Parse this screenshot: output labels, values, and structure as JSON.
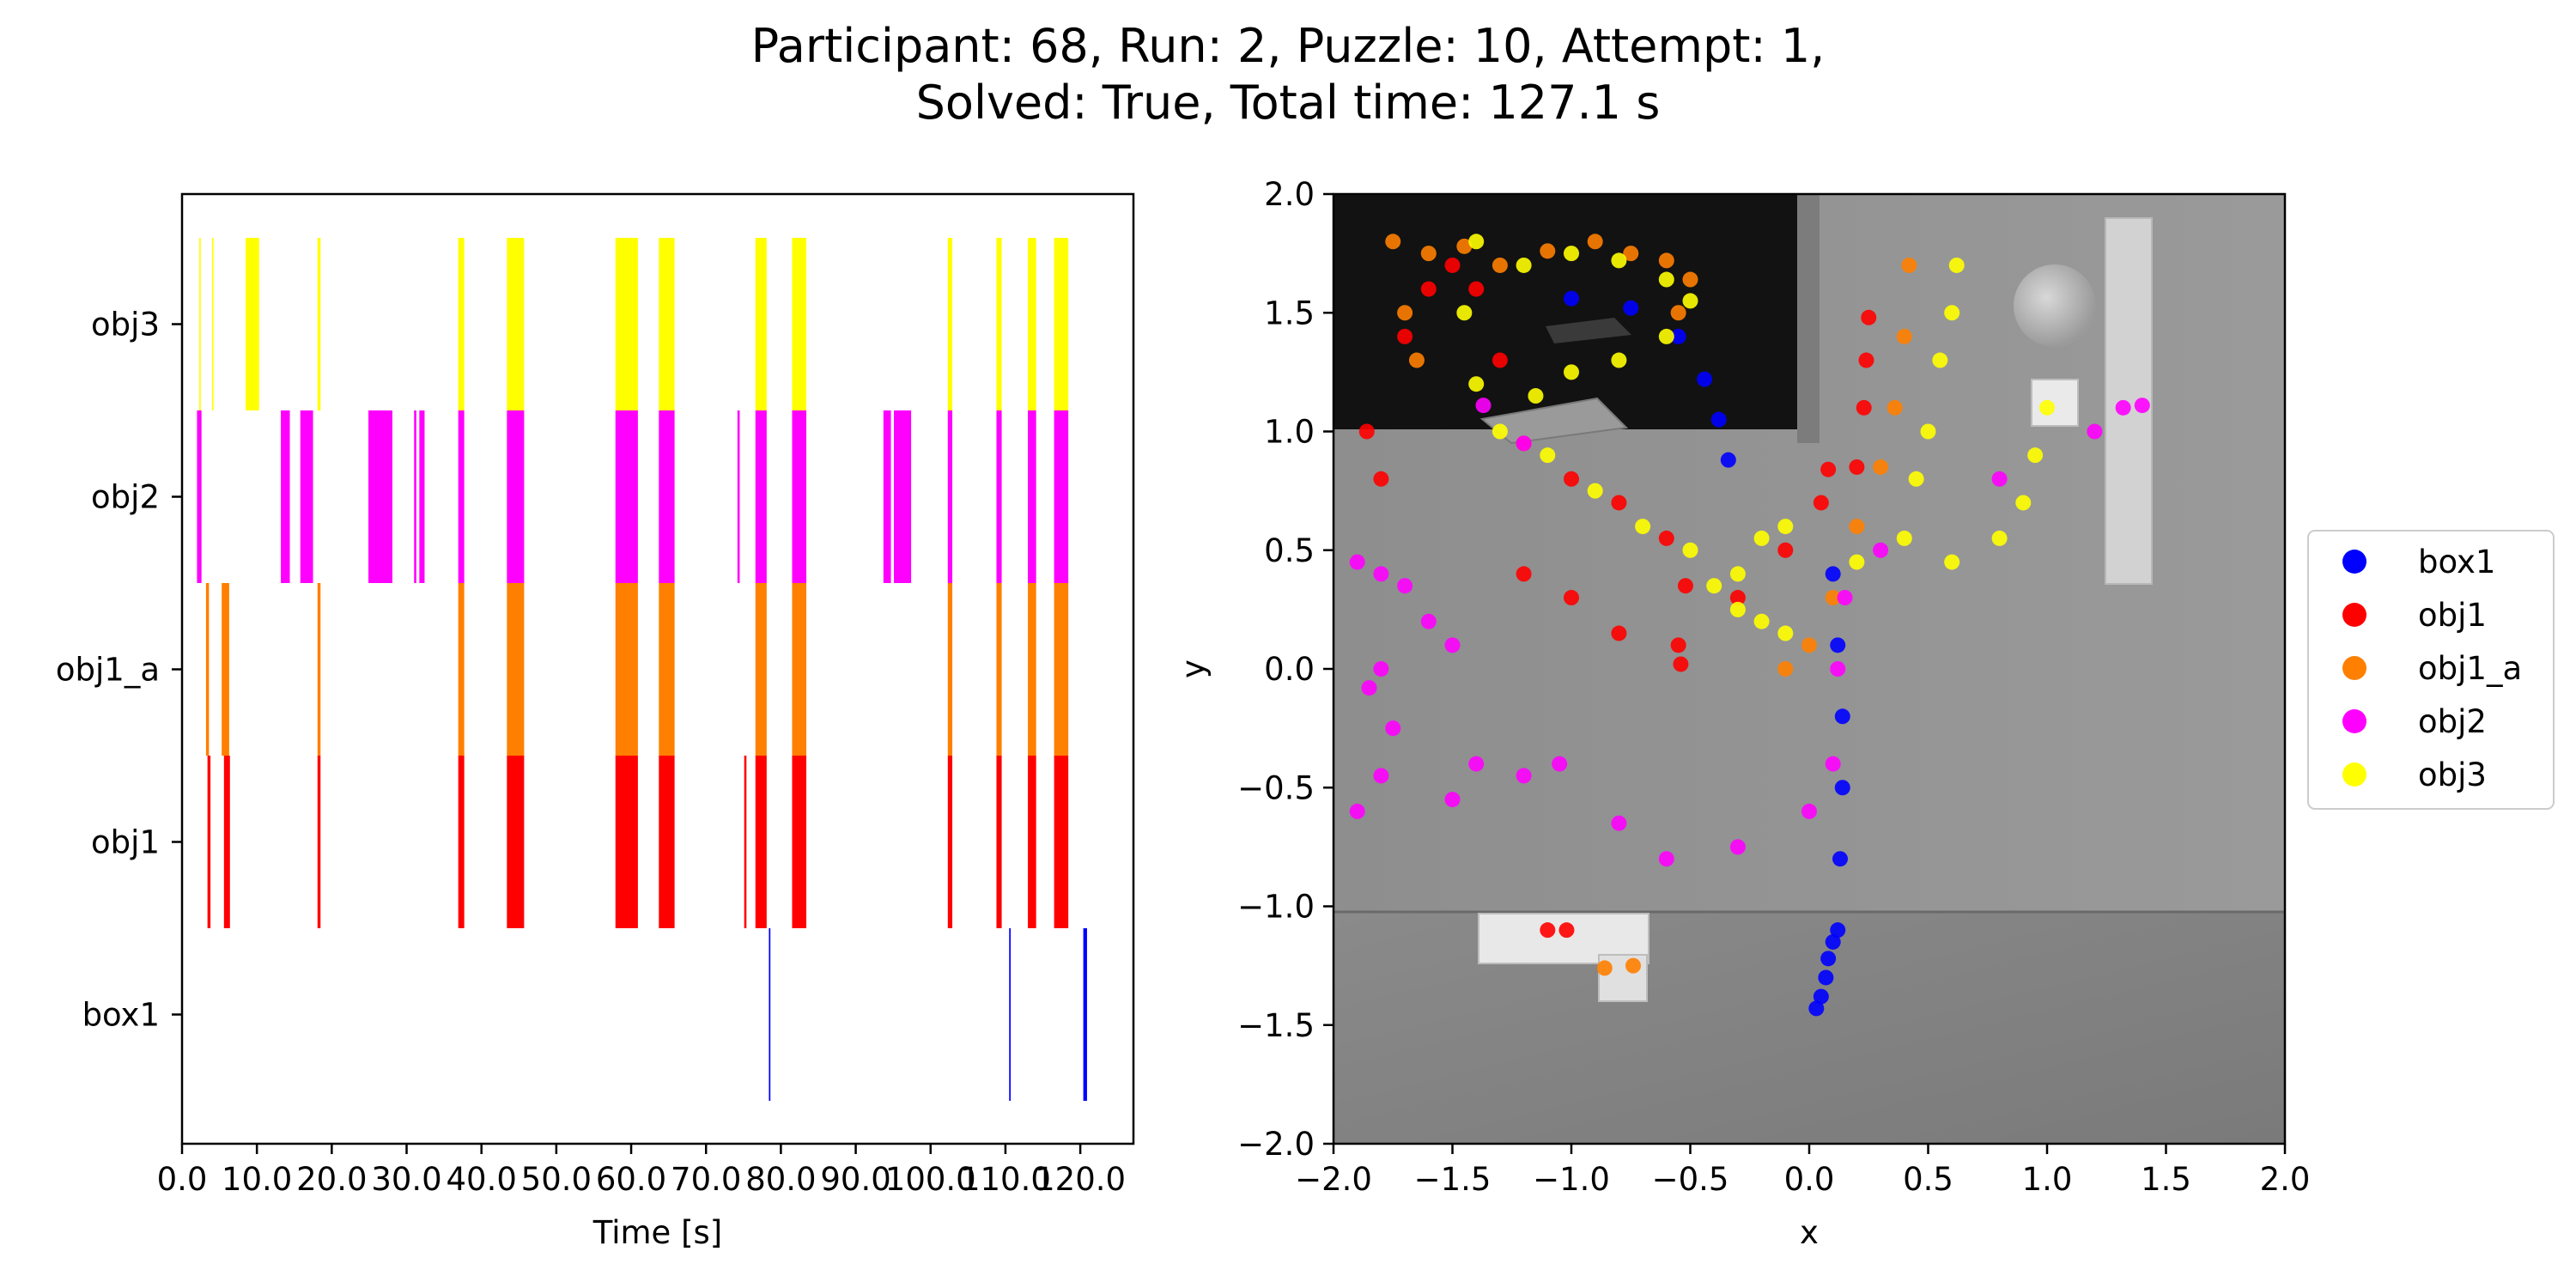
{
  "figure": {
    "title_line1": "Participant: 68, Run: 2, Puzzle: 10, Attempt: 1,",
    "title_line2": "Solved: True, Total time: 127.1 s"
  },
  "colors": {
    "box1": "#0000ff",
    "obj1": "#ff0000",
    "obj1_a": "#ff7f00",
    "obj2": "#ff00ff",
    "obj3": "#ffff00"
  },
  "chart_data": [
    {
      "type": "timeline",
      "xlabel": "Time [s]",
      "xlim": [
        0,
        127.1
      ],
      "xticks": [
        0,
        10,
        20,
        30,
        40,
        50,
        60,
        70,
        80,
        90,
        100,
        110,
        120
      ],
      "xtick_labels": [
        "0.0",
        "10.0",
        "20.0",
        "30.0",
        "40.0",
        "50.0",
        "60.0",
        "70.0",
        "80.0",
        "90.0",
        "100.0",
        "110.0",
        "120.0"
      ],
      "rows": [
        "box1",
        "obj1",
        "obj1_a",
        "obj2",
        "obj3"
      ],
      "intervals": {
        "obj3": [
          [
            2.3,
            2.5
          ],
          [
            4.0,
            4.2
          ],
          [
            8.5,
            10.3
          ],
          [
            18.1,
            18.5
          ],
          [
            36.9,
            37.7
          ],
          [
            43.4,
            45.7
          ],
          [
            57.9,
            60.9
          ],
          [
            63.7,
            65.8
          ],
          [
            76.6,
            78.1
          ],
          [
            81.5,
            83.4
          ],
          [
            102.3,
            102.9
          ],
          [
            108.8,
            109.5
          ],
          [
            113.0,
            114.1
          ],
          [
            116.5,
            118.4
          ]
        ],
        "obj2": [
          [
            2.0,
            2.6
          ],
          [
            13.2,
            14.4
          ],
          [
            15.8,
            17.5
          ],
          [
            24.9,
            28.1
          ],
          [
            31.0,
            31.3
          ],
          [
            31.7,
            32.4
          ],
          [
            36.9,
            37.7
          ],
          [
            43.4,
            45.7
          ],
          [
            57.9,
            60.9
          ],
          [
            63.7,
            65.8
          ],
          [
            74.2,
            74.5
          ],
          [
            76.6,
            78.1
          ],
          [
            81.5,
            83.4
          ],
          [
            93.7,
            94.7
          ],
          [
            95.1,
            97.4
          ],
          [
            102.3,
            102.9
          ],
          [
            108.8,
            109.5
          ],
          [
            113.0,
            114.1
          ],
          [
            116.5,
            118.4
          ]
        ],
        "obj1_a": [
          [
            3.2,
            3.6
          ],
          [
            5.3,
            6.3
          ],
          [
            18.1,
            18.5
          ],
          [
            36.9,
            37.7
          ],
          [
            43.4,
            45.7
          ],
          [
            57.9,
            60.9
          ],
          [
            63.7,
            65.8
          ],
          [
            76.6,
            78.1
          ],
          [
            81.5,
            83.4
          ],
          [
            102.3,
            102.9
          ],
          [
            108.8,
            109.5
          ],
          [
            113.0,
            114.1
          ],
          [
            116.5,
            118.4
          ]
        ],
        "obj1": [
          [
            3.4,
            3.8
          ],
          [
            5.6,
            6.4
          ],
          [
            18.1,
            18.5
          ],
          [
            36.9,
            37.7
          ],
          [
            43.4,
            45.7
          ],
          [
            57.9,
            60.9
          ],
          [
            63.7,
            65.8
          ],
          [
            75.1,
            75.4
          ],
          [
            76.6,
            78.1
          ],
          [
            81.5,
            83.4
          ],
          [
            102.3,
            102.9
          ],
          [
            108.8,
            109.5
          ],
          [
            113.0,
            114.1
          ],
          [
            116.5,
            118.4
          ]
        ],
        "box1": [
          [
            78.4,
            78.6
          ],
          [
            110.5,
            110.7
          ],
          [
            120.4,
            120.9
          ]
        ]
      }
    },
    {
      "type": "scatter",
      "xlabel": "x",
      "ylabel": "y",
      "xlim": [
        -2.0,
        2.0
      ],
      "ylim": [
        -2.0,
        2.0
      ],
      "xticks": [
        "−2.0",
        "−1.5",
        "−1.0",
        "−0.5",
        "0.0",
        "0.5",
        "1.0",
        "1.5",
        "2.0"
      ],
      "yticks": [
        "−2.0",
        "−1.5",
        "−1.0",
        "−0.5",
        "0.0",
        "0.5",
        "1.0",
        "1.5",
        "2.0"
      ],
      "legend": {
        "position": "right",
        "entries": [
          "box1",
          "obj1",
          "obj1_a",
          "obj2",
          "obj3"
        ]
      },
      "series": [
        {
          "name": "box1",
          "points": [
            [
              0.03,
              -1.43
            ],
            [
              0.05,
              -1.38
            ],
            [
              0.07,
              -1.3
            ],
            [
              0.08,
              -1.22
            ],
            [
              0.1,
              -1.15
            ],
            [
              0.12,
              -1.1
            ],
            [
              0.13,
              -0.8
            ],
            [
              0.14,
              -0.5
            ],
            [
              0.14,
              -0.2
            ],
            [
              0.12,
              0.1
            ],
            [
              0.1,
              0.4
            ],
            [
              -0.34,
              0.88
            ],
            [
              -0.38,
              1.05
            ],
            [
              -0.44,
              1.22
            ],
            [
              -0.55,
              1.4
            ],
            [
              -0.75,
              1.52
            ],
            [
              -1.0,
              1.56
            ]
          ]
        },
        {
          "name": "obj1",
          "points": [
            [
              -1.1,
              -1.1
            ],
            [
              -1.02,
              -1.1
            ],
            [
              -1.86,
              1.0
            ],
            [
              -1.8,
              0.8
            ],
            [
              -1.7,
              1.4
            ],
            [
              -1.6,
              1.6
            ],
            [
              -1.5,
              1.7
            ],
            [
              -1.4,
              1.6
            ],
            [
              -1.3,
              1.3
            ],
            [
              -1.2,
              0.95
            ],
            [
              -1.0,
              0.8
            ],
            [
              -0.8,
              0.7
            ],
            [
              -0.6,
              0.55
            ],
            [
              -0.52,
              0.35
            ],
            [
              -0.55,
              0.1
            ],
            [
              -0.54,
              0.02
            ],
            [
              -0.3,
              0.3
            ],
            [
              -0.1,
              0.5
            ],
            [
              0.05,
              0.7
            ],
            [
              0.08,
              0.84
            ],
            [
              0.2,
              0.85
            ],
            [
              0.23,
              1.1
            ],
            [
              0.24,
              1.3
            ],
            [
              0.25,
              1.48
            ],
            [
              -1.2,
              0.4
            ],
            [
              -1.0,
              0.3
            ],
            [
              -0.8,
              0.15
            ]
          ]
        },
        {
          "name": "obj1_a",
          "points": [
            [
              -0.86,
              -1.26
            ],
            [
              -0.74,
              -1.25
            ],
            [
              -1.75,
              1.8
            ],
            [
              -1.6,
              1.75
            ],
            [
              -1.45,
              1.78
            ],
            [
              -1.3,
              1.7
            ],
            [
              -1.1,
              1.76
            ],
            [
              -0.9,
              1.8
            ],
            [
              -0.75,
              1.75
            ],
            [
              -0.6,
              1.72
            ],
            [
              -0.5,
              1.64
            ],
            [
              -0.55,
              1.5
            ],
            [
              -1.7,
              1.5
            ],
            [
              -1.65,
              1.3
            ],
            [
              -0.1,
              0.0
            ],
            [
              0.0,
              0.1
            ],
            [
              0.1,
              0.3
            ],
            [
              0.2,
              0.6
            ],
            [
              0.3,
              0.85
            ],
            [
              0.36,
              1.1
            ],
            [
              0.4,
              1.4
            ],
            [
              0.42,
              1.7
            ]
          ]
        },
        {
          "name": "obj2",
          "points": [
            [
              -1.37,
              1.11
            ],
            [
              -1.2,
              0.95
            ],
            [
              -1.9,
              0.45
            ],
            [
              -1.8,
              0.4
            ],
            [
              -1.7,
              0.35
            ],
            [
              -1.6,
              0.2
            ],
            [
              -1.5,
              0.1
            ],
            [
              -1.8,
              0.0
            ],
            [
              -1.85,
              -0.08
            ],
            [
              -1.75,
              -0.25
            ],
            [
              -1.8,
              -0.45
            ],
            [
              -1.9,
              -0.6
            ],
            [
              -1.5,
              -0.55
            ],
            [
              -1.4,
              -0.4
            ],
            [
              -1.2,
              -0.45
            ],
            [
              -1.05,
              -0.4
            ],
            [
              -0.8,
              -0.65
            ],
            [
              -0.6,
              -0.8
            ],
            [
              -0.3,
              -0.75
            ],
            [
              0.0,
              -0.6
            ],
            [
              0.1,
              -0.4
            ],
            [
              0.12,
              0.0
            ],
            [
              0.15,
              0.3
            ],
            [
              0.3,
              0.5
            ],
            [
              0.8,
              0.8
            ],
            [
              1.2,
              1.0
            ],
            [
              1.32,
              1.1
            ],
            [
              1.4,
              1.11
            ]
          ]
        },
        {
          "name": "obj3",
          "points": [
            [
              1.0,
              1.1
            ],
            [
              -1.4,
              1.8
            ],
            [
              -1.2,
              1.7
            ],
            [
              -1.0,
              1.75
            ],
            [
              -0.8,
              1.72
            ],
            [
              -0.6,
              1.64
            ],
            [
              -0.5,
              1.55
            ],
            [
              -0.6,
              1.4
            ],
            [
              -0.8,
              1.3
            ],
            [
              -1.0,
              1.25
            ],
            [
              -1.15,
              1.15
            ],
            [
              -1.3,
              1.0
            ],
            [
              -1.4,
              1.2
            ],
            [
              -1.45,
              1.5
            ],
            [
              -1.1,
              0.9
            ],
            [
              -0.9,
              0.75
            ],
            [
              -0.7,
              0.6
            ],
            [
              -0.5,
              0.5
            ],
            [
              -0.4,
              0.35
            ],
            [
              -0.3,
              0.25
            ],
            [
              -0.2,
              0.2
            ],
            [
              -0.1,
              0.15
            ],
            [
              -0.3,
              0.4
            ],
            [
              -0.2,
              0.55
            ],
            [
              -0.1,
              0.6
            ],
            [
              0.2,
              0.45
            ],
            [
              0.4,
              0.55
            ],
            [
              0.45,
              0.8
            ],
            [
              0.5,
              1.0
            ],
            [
              0.55,
              1.3
            ],
            [
              0.6,
              1.5
            ],
            [
              0.62,
              1.7
            ],
            [
              0.6,
              0.45
            ],
            [
              0.8,
              0.55
            ],
            [
              0.9,
              0.7
            ],
            [
              0.95,
              0.9
            ]
          ]
        }
      ]
    }
  ]
}
